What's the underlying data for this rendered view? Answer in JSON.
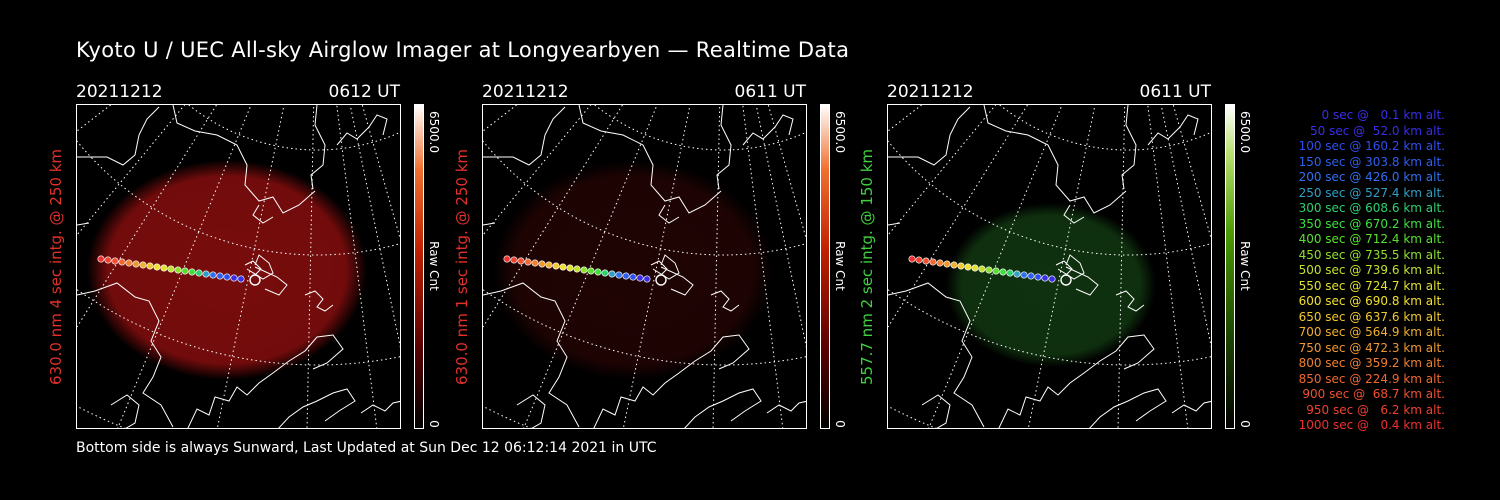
{
  "title": "Kyoto U / UEC All-sky Airglow Imager at Longyearbyen — Realtime Data",
  "footer": "Bottom side is always Sunward, Last Updated at Sun Dec 12 06:12:14 2021 in UTC",
  "panels": [
    {
      "date": "20211212",
      "time": "0612 UT",
      "ylabel": "630.0 nm 4 sec intg. @ 250 km",
      "label_color": "#e0312a",
      "cb_max": "6500.0",
      "cb_min": "0",
      "cb_unit": "Raw Cnt",
      "colormap": "red",
      "glow_color": "#a01010",
      "glow_level": 0.75
    },
    {
      "date": "20211212",
      "time": "0611 UT",
      "ylabel": "630.0 nm 1 sec intg. @ 250 km",
      "label_color": "#e0312a",
      "cb_max": "6500.0",
      "cb_min": "0",
      "cb_unit": "Raw Cnt",
      "colormap": "red",
      "glow_color": "#5a0a0a",
      "glow_level": 0.35
    },
    {
      "date": "20211212",
      "time": "0611 UT",
      "ylabel": "557.7 nm 2 sec intg. @ 150 km",
      "label_color": "#3fd13f",
      "cb_max": "6500.0",
      "cb_min": "0",
      "cb_unit": "Raw Cnt",
      "colormap": "green",
      "glow_color": "#1c5a1c",
      "glow_level": 0.55
    }
  ],
  "legend": [
    {
      "text": " 0 sec @   0.1 km alt.",
      "color": "#3a2ee8"
    },
    {
      "text": "50 sec @  52.0 km alt.",
      "color": "#3a2ee8"
    },
    {
      "text": "100 sec @ 160.2 km alt.",
      "color": "#2f4ef0"
    },
    {
      "text": "150 sec @ 303.8 km alt.",
      "color": "#2f5ff0"
    },
    {
      "text": "200 sec @ 426.0 km alt.",
      "color": "#2f70f0"
    },
    {
      "text": "250 sec @ 527.4 km alt.",
      "color": "#2fa0c8"
    },
    {
      "text": "300 sec @ 608.6 km alt.",
      "color": "#2fd070"
    },
    {
      "text": "350 sec @ 670.2 km alt.",
      "color": "#3ee03e"
    },
    {
      "text": "400 sec @ 712.4 km alt.",
      "color": "#58e030"
    },
    {
      "text": "450 sec @ 735.5 km alt.",
      "color": "#8ee030"
    },
    {
      "text": "500 sec @ 739.6 km alt.",
      "color": "#c0e030"
    },
    {
      "text": "550 sec @ 724.7 km alt.",
      "color": "#e0e030"
    },
    {
      "text": "600 sec @ 690.8 km alt.",
      "color": "#f0e030"
    },
    {
      "text": "650 sec @ 637.6 km alt.",
      "color": "#f0c830"
    },
    {
      "text": "700 sec @ 564.9 km alt.",
      "color": "#f0b030"
    },
    {
      "text": "750 sec @ 472.3 km alt.",
      "color": "#f09830"
    },
    {
      "text": "800 sec @ 359.2 km alt.",
      "color": "#f08030"
    },
    {
      "text": "850 sec @ 224.9 km alt.",
      "color": "#f06830"
    },
    {
      "text": "900 sec @  68.7 km alt.",
      "color": "#f05030"
    },
    {
      "text": "950 sec @   6.2 km alt.",
      "color": "#f04030"
    },
    {
      "text": "1000 sec @   0.4 km alt.",
      "color": "#f03030"
    }
  ]
}
